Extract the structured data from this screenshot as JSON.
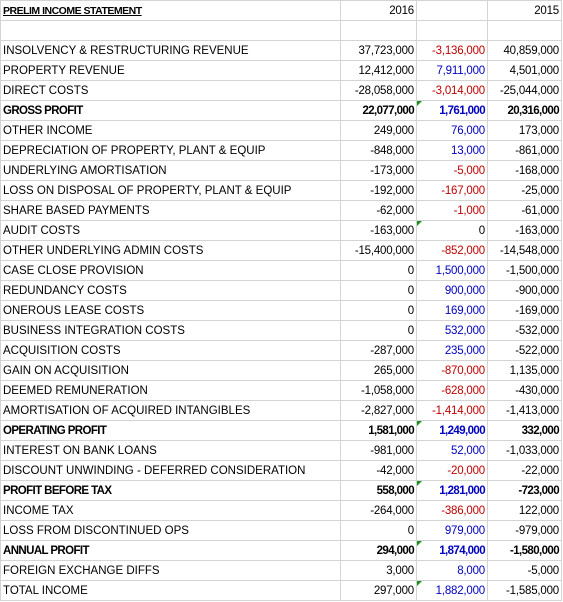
{
  "header": {
    "title": "PRELIM INCOME STATEMENT",
    "year_a": "2016",
    "year_b": "2015"
  },
  "rows": [
    {
      "label": "INSOLVENCY & RESTRUCTURING REVENUE",
      "y2016": "37,723,000",
      "change": "-3,136,000",
      "y2015": "40,859,000"
    },
    {
      "label": "PROPERTY REVENUE",
      "y2016": "12,412,000",
      "change": "7,911,000",
      "y2015": "4,501,000"
    },
    {
      "label": "DIRECT COSTS",
      "y2016": "-28,058,000",
      "change": "-3,014,000",
      "y2015": "-25,044,000"
    },
    {
      "label": "GROSS PROFIT",
      "y2016": "22,077,000",
      "change": "1,761,000",
      "y2015": "20,316,000",
      "bold": true
    },
    {
      "label": "OTHER INCOME",
      "y2016": "249,000",
      "change": "76,000",
      "y2015": "173,000"
    },
    {
      "label": "DEPRECIATION OF PROPERTY, PLANT & EQUIP",
      "y2016": "-848,000",
      "change": "13,000",
      "y2015": "-861,000"
    },
    {
      "label": "UNDERLYING AMORTISATION",
      "y2016": "-173,000",
      "change": "-5,000",
      "y2015": "-168,000"
    },
    {
      "label": "LOSS ON DISPOSAL OF PROPERTY, PLANT & EQUIP",
      "y2016": "-192,000",
      "change": "-167,000",
      "y2015": "-25,000"
    },
    {
      "label": "SHARE BASED PAYMENTS",
      "y2016": "-62,000",
      "change": "-1,000",
      "y2015": "-61,000"
    },
    {
      "label": "AUDIT COSTS",
      "y2016": "-163,000",
      "change": "0",
      "y2015": "-163,000"
    },
    {
      "label": "OTHER UNDERLYING ADMIN COSTS",
      "y2016": "-15,400,000",
      "change": "-852,000",
      "y2015": "-14,548,000"
    },
    {
      "label": "CASE CLOSE PROVISION",
      "y2016": "0",
      "change": "1,500,000",
      "y2015": "-1,500,000"
    },
    {
      "label": "REDUNDANCY COSTS",
      "y2016": "0",
      "change": "900,000",
      "y2015": "-900,000"
    },
    {
      "label": "ONEROUS LEASE COSTS",
      "y2016": "0",
      "change": "169,000",
      "y2015": "-169,000"
    },
    {
      "label": "BUSINESS INTEGRATION COSTS",
      "y2016": "0",
      "change": "532,000",
      "y2015": "-532,000"
    },
    {
      "label": "ACQUISITION COSTS",
      "y2016": "-287,000",
      "change": "235,000",
      "y2015": "-522,000"
    },
    {
      "label": "GAIN ON ACQUISITION",
      "y2016": "265,000",
      "change": "-870,000",
      "y2015": "1,135,000"
    },
    {
      "label": "DEEMED REMUNERATION",
      "y2016": "-1,058,000",
      "change": "-628,000",
      "y2015": "-430,000"
    },
    {
      "label": "AMORTISATION OF ACQUIRED INTANGIBLES",
      "y2016": "-2,827,000",
      "change": "-1,414,000",
      "y2015": "-1,413,000"
    },
    {
      "label": "OPERATING PROFIT",
      "y2016": "1,581,000",
      "change": "1,249,000",
      "y2015": "332,000",
      "bold": true
    },
    {
      "label": "INTEREST ON BANK LOANS",
      "y2016": "-981,000",
      "change": "52,000",
      "y2015": "-1,033,000"
    },
    {
      "label": "DISCOUNT UNWINDING - DEFERRED CONSIDERATION",
      "y2016": "-42,000",
      "change": "-20,000",
      "y2015": "-22,000"
    },
    {
      "label": "PROFIT BEFORE TAX",
      "y2016": "558,000",
      "change": "1,281,000",
      "y2015": "-723,000",
      "bold": true
    },
    {
      "label": "INCOME TAX",
      "y2016": "-264,000",
      "change": "-386,000",
      "y2015": "122,000"
    },
    {
      "label": "LOSS FROM DISCONTINUED OPS",
      "y2016": "0",
      "change": "979,000",
      "y2015": "-979,000"
    },
    {
      "label": "ANNUAL PROFIT",
      "y2016": "294,000",
      "change": "1,874,000",
      "y2015": "-1,580,000",
      "bold": true
    },
    {
      "label": "FOREIGN EXCHANGE DIFFS",
      "y2016": "3,000",
      "change": "8,000",
      "y2015": "-5,000"
    },
    {
      "label": "TOTAL INCOME",
      "y2016": "297,000",
      "change": "1,882,000",
      "y2015": "-1,585,000"
    }
  ]
}
